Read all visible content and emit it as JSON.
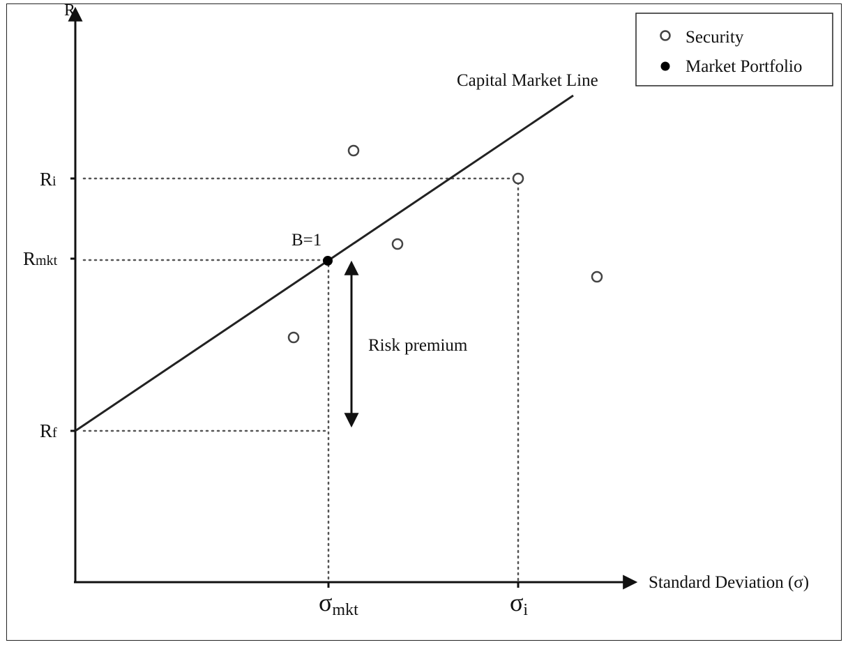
{
  "axes": {
    "y_label": "R",
    "x_label": "Standard Deviation (σ)"
  },
  "y_ticks": {
    "ri": {
      "main": "R",
      "sub": "i"
    },
    "rmkt": {
      "main": "R",
      "sub": "mkt"
    },
    "rf": {
      "main": "R",
      "sub": "f"
    }
  },
  "x_ticks": {
    "sigma_mkt": {
      "main": "σ",
      "sub": "mkt"
    },
    "sigma_i": {
      "main": "σ",
      "sub": "i"
    }
  },
  "line_label": "Capital Market Line",
  "beta_label": "B=1",
  "risk_premium_label": "Risk premium",
  "legend": {
    "security": "Security",
    "market": "Market Portfolio"
  },
  "colors": {
    "ink": "#111111",
    "dotted": "#555555",
    "marker_stroke": "#444444"
  }
}
